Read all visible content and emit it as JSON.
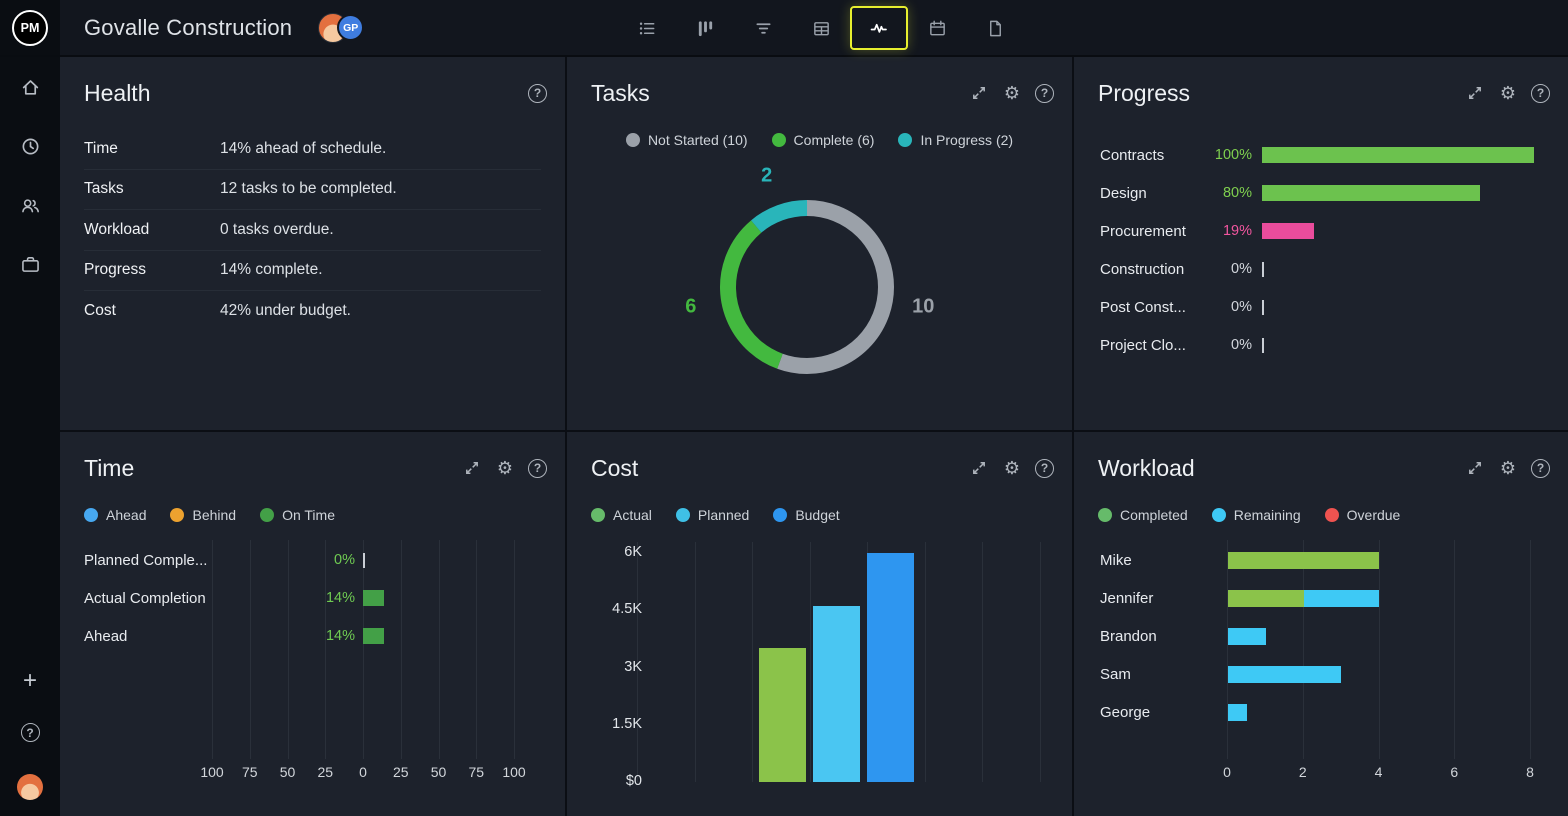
{
  "app": {
    "logo_text": "PM",
    "title": "Govalle Construction",
    "avatar_initials": "GP",
    "toolbar_icons": [
      "list-view",
      "board-view",
      "gantt-view",
      "table-view",
      "chart-view",
      "calendar-view",
      "document-view"
    ],
    "toolbar_active": "chart-view",
    "sidebar_icons": [
      "home",
      "clock",
      "team",
      "portfolio",
      "add",
      "help",
      "user-avatar"
    ],
    "panel_header_icons": [
      "expand",
      "settings",
      "help"
    ],
    "accent_highlight": "#e7ef2f"
  },
  "panels": {
    "health": {
      "title": "Health",
      "rows": [
        {
          "label": "Time",
          "value": "14% ahead of schedule."
        },
        {
          "label": "Tasks",
          "value": "12 tasks to be completed."
        },
        {
          "label": "Workload",
          "value": "0 tasks overdue."
        },
        {
          "label": "Progress",
          "value": "14% complete."
        },
        {
          "label": "Cost",
          "value": "42% under budget."
        }
      ]
    },
    "tasks": {
      "title": "Tasks",
      "chart": {
        "type": "pie",
        "total": 18,
        "segments": [
          {
            "name": "Not Started",
            "value": 10,
            "color": "#9ba1a9"
          },
          {
            "name": "Complete",
            "value": 6,
            "color": "#43b93f"
          },
          {
            "name": "In Progress",
            "value": 2,
            "color": "#29b5ba"
          }
        ],
        "legend": [
          {
            "label": "Not Started (10)",
            "color": "#9ba1a9"
          },
          {
            "label": "Complete (6)",
            "color": "#43b93f"
          },
          {
            "label": "In Progress (2)",
            "color": "#29b5ba"
          }
        ]
      }
    },
    "progress": {
      "title": "Progress",
      "chart": {
        "type": "bar",
        "xlim": [
          0,
          100
        ],
        "rows": [
          {
            "label": "Contracts",
            "pct": 100,
            "display": "100%",
            "bar_color": "#6cc24e",
            "value_color": "#7fd04f"
          },
          {
            "label": "Design",
            "pct": 80,
            "display": "80%",
            "bar_color": "#6cc24e",
            "value_color": "#7fd04f"
          },
          {
            "label": "Procurement",
            "pct": 19,
            "display": "19%",
            "bar_color": "#ea4c9c",
            "value_color": "#f1569f"
          },
          {
            "label": "Construction",
            "pct": 0,
            "display": "0%",
            "bar_color": "#c9ced5",
            "value_color": "#d3d7dd"
          },
          {
            "label": "Post Const...",
            "pct": 0,
            "display": "0%",
            "bar_color": "#c9ced5",
            "value_color": "#d3d7dd"
          },
          {
            "label": "Project Clo...",
            "pct": 0,
            "display": "0%",
            "bar_color": "#c9ced5",
            "value_color": "#d3d7dd"
          }
        ]
      }
    },
    "time": {
      "title": "Time",
      "chart": {
        "type": "bar",
        "legend": [
          {
            "label": "Ahead",
            "color": "#47a8f0"
          },
          {
            "label": "Behind",
            "color": "#eda22f"
          },
          {
            "label": "On Time",
            "color": "#43a047"
          }
        ],
        "rows": [
          {
            "label": "Planned Comple...",
            "pct": 0,
            "display": "0%"
          },
          {
            "label": "Actual Completion",
            "pct": 14,
            "display": "14%"
          },
          {
            "label": "Ahead",
            "pct": 14,
            "display": "14%"
          }
        ],
        "bar_color": "#43a047",
        "value_color": "#6fcb52",
        "x_ticks": [
          "100",
          "75",
          "50",
          "25",
          "0",
          "25",
          "50",
          "75",
          "100"
        ]
      }
    },
    "cost": {
      "title": "Cost",
      "chart": {
        "type": "bar",
        "legend": [
          {
            "label": "Actual",
            "color": "#66bb6a"
          },
          {
            "label": "Planned",
            "color": "#3fc0e6"
          },
          {
            "label": "Budget",
            "color": "#2e96f0"
          }
        ],
        "bars": [
          {
            "name": "Actual",
            "value": 3500,
            "color": "#8bc34a"
          },
          {
            "name": "Planned",
            "value": 4600,
            "color": "#4ac6f2"
          },
          {
            "name": "Budget",
            "value": 6000,
            "color": "#2e96f0"
          }
        ],
        "y_max": 6000,
        "y_ticks": [
          "6K",
          "4.5K",
          "3K",
          "1.5K",
          "$0"
        ]
      }
    },
    "workload": {
      "title": "Workload",
      "chart": {
        "type": "bar",
        "legend": [
          {
            "label": "Completed",
            "color": "#66bb6a"
          },
          {
            "label": "Remaining",
            "color": "#3ec9f5"
          },
          {
            "label": "Overdue",
            "color": "#ef5350"
          }
        ],
        "series_colors": {
          "completed": "#8bc34a",
          "remaining": "#3ec9f5",
          "overdue": "#ef5350"
        },
        "rows": [
          {
            "label": "Mike",
            "segments": [
              {
                "series": "completed",
                "value": 4
              }
            ]
          },
          {
            "label": "Jennifer",
            "segments": [
              {
                "series": "completed",
                "value": 2
              },
              {
                "series": "remaining",
                "value": 2
              }
            ]
          },
          {
            "label": "Brandon",
            "segments": [
              {
                "series": "remaining",
                "value": 1
              }
            ]
          },
          {
            "label": "Sam",
            "segments": [
              {
                "series": "remaining",
                "value": 3
              }
            ]
          },
          {
            "label": "George",
            "segments": [
              {
                "series": "remaining",
                "value": 0.5
              }
            ]
          }
        ],
        "x_max": 8,
        "x_ticks": [
          "0",
          "2",
          "4",
          "6",
          "8"
        ]
      }
    }
  }
}
